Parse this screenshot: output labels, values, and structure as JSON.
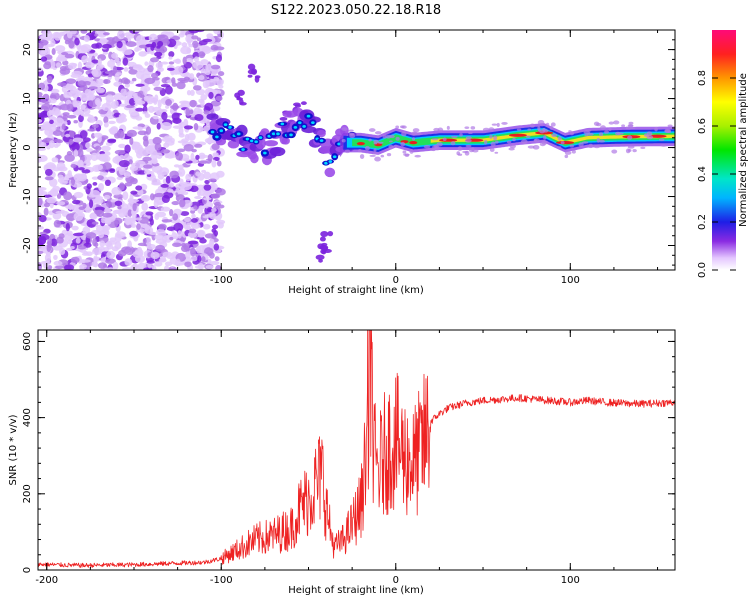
{
  "title": "S122.2023.050.22.18.R18",
  "chart_data": [
    {
      "type": "heatmap",
      "xlabel": "Height of straight line (km)",
      "ylabel": "Frequency (Hz)",
      "xlim": [
        -205,
        160
      ],
      "ylim": [
        -25,
        24
      ],
      "xticks": [
        -200,
        -100,
        0,
        100
      ],
      "yticks": [
        -20,
        -10,
        0,
        10,
        20
      ],
      "colorbar": {
        "label": "Normalized spectral amplitude",
        "range": [
          0,
          1
        ],
        "ticks": [
          0.0,
          0.2,
          0.4,
          0.6,
          0.8
        ]
      },
      "ridge": [
        {
          "x": -105,
          "y": 4
        },
        {
          "x": -95,
          "y": 3
        },
        {
          "x": -85,
          "y": 1
        },
        {
          "x": -75,
          "y": 0
        },
        {
          "x": -65,
          "y": 3
        },
        {
          "x": -55,
          "y": 6
        },
        {
          "x": -45,
          "y": 3
        },
        {
          "x": -38,
          "y": -3
        },
        {
          "x": -30,
          "y": 1
        },
        {
          "x": -20,
          "y": 1
        },
        {
          "x": -10,
          "y": 0.5
        },
        {
          "x": 0,
          "y": 2
        },
        {
          "x": 10,
          "y": 1
        },
        {
          "x": 25,
          "y": 1.5
        },
        {
          "x": 50,
          "y": 1.5
        },
        {
          "x": 70,
          "y": 2.5
        },
        {
          "x": 85,
          "y": 3
        },
        {
          "x": 97,
          "y": 1
        },
        {
          "x": 110,
          "y": 2
        },
        {
          "x": 130,
          "y": 2.2
        },
        {
          "x": 160,
          "y": 2.3
        }
      ]
    },
    {
      "type": "line",
      "xlabel": "Height of straight line (km)",
      "ylabel": "SNR (10 * v/v)",
      "xlim": [
        -205,
        160
      ],
      "ylim": [
        0,
        630
      ],
      "xticks": [
        -200,
        -100,
        0,
        100
      ],
      "yticks": [
        0,
        200,
        400,
        600
      ],
      "color": "#ee2222",
      "series": [
        {
          "x": [
            -205,
            -180,
            -150,
            -125,
            -110,
            -100,
            -90,
            -80,
            -70,
            -60,
            -55,
            -50,
            -45,
            -42,
            -40,
            -37,
            -35,
            -30,
            -25,
            -20,
            -17,
            -15,
            -13,
            -10,
            -5,
            0,
            5,
            10,
            15,
            20,
            25,
            30,
            40,
            50,
            60,
            70,
            80,
            90,
            100,
            110,
            120,
            130,
            140,
            150,
            160
          ],
          "y": [
            15,
            12,
            14,
            18,
            20,
            30,
            55,
            80,
            90,
            110,
            160,
            190,
            230,
            250,
            170,
            90,
            60,
            80,
            120,
            170,
            300,
            560,
            300,
            260,
            320,
            340,
            300,
            280,
            320,
            390,
            410,
            425,
            438,
            445,
            448,
            452,
            448,
            444,
            440,
            445,
            440,
            438,
            436,
            438,
            440
          ]
        }
      ]
    }
  ]
}
